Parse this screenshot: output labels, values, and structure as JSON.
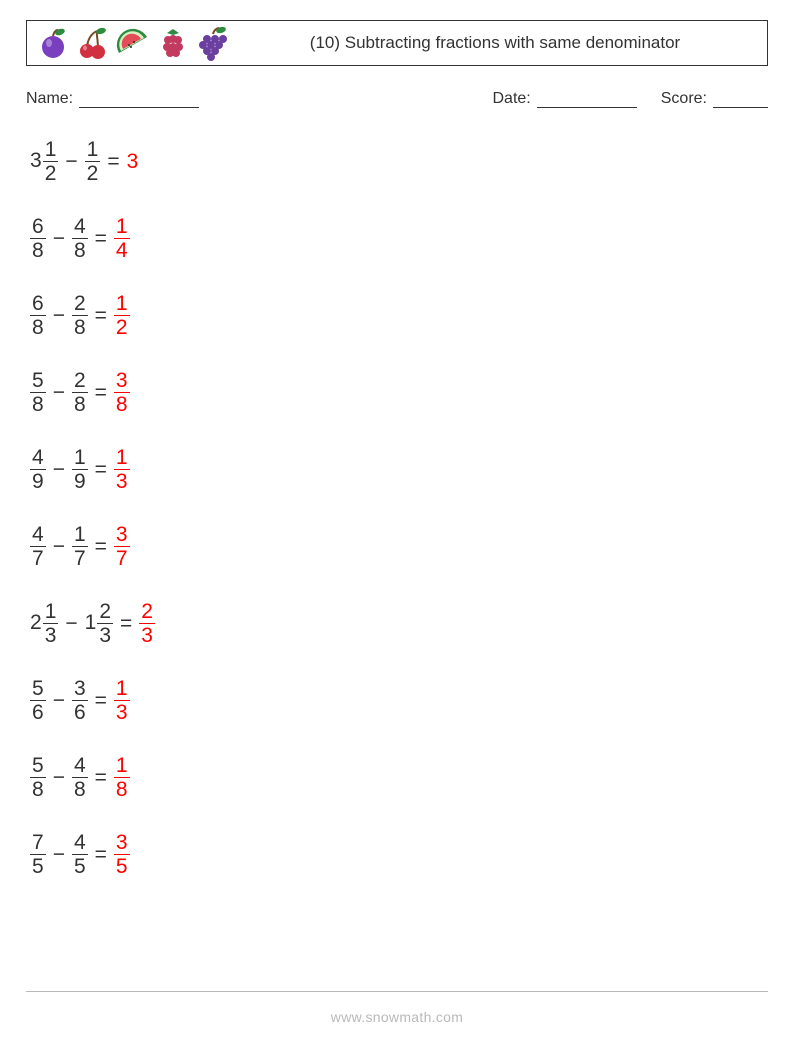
{
  "header": {
    "title": "(10) Subtracting fractions with same denominator",
    "title_fontsize": 17,
    "box_border_color": "#333333",
    "fruits": [
      {
        "name": "plum-icon",
        "colors": {
          "body": "#7a3fbf",
          "leaf": "#2e8b3f",
          "stem": "#7a4a1f"
        }
      },
      {
        "name": "cherries-icon",
        "colors": {
          "body": "#d03040",
          "leaf": "#2e8b3f",
          "stem": "#7a4a1f"
        }
      },
      {
        "name": "watermelon-icon",
        "colors": {
          "flesh": "#e34d58",
          "rind": "#2e8b3f",
          "inner": "#d6f0c0",
          "seed": "#2b2b2b"
        }
      },
      {
        "name": "raspberry-icon",
        "colors": {
          "body": "#c23a5f",
          "leaf": "#2e8b3f"
        }
      },
      {
        "name": "grapes-icon",
        "colors": {
          "body": "#6a3fa0",
          "leaf": "#2e8b3f",
          "stem": "#7a4a1f"
        }
      }
    ]
  },
  "meta": {
    "name_label": "Name:",
    "date_label": "Date:",
    "score_label": "Score:"
  },
  "style": {
    "text_color": "#333333",
    "answer_color": "#ff0000",
    "problem_fontsize": 21,
    "background_color": "#ffffff",
    "footer_color": "#b9b9b9"
  },
  "problems": [
    {
      "a": {
        "whole": "3",
        "num": "1",
        "den": "2"
      },
      "b": {
        "whole": "",
        "num": "1",
        "den": "2"
      },
      "ans": {
        "whole": "3",
        "num": "",
        "den": ""
      }
    },
    {
      "a": {
        "whole": "",
        "num": "6",
        "den": "8"
      },
      "b": {
        "whole": "",
        "num": "4",
        "den": "8"
      },
      "ans": {
        "whole": "",
        "num": "1",
        "den": "4"
      }
    },
    {
      "a": {
        "whole": "",
        "num": "6",
        "den": "8"
      },
      "b": {
        "whole": "",
        "num": "2",
        "den": "8"
      },
      "ans": {
        "whole": "",
        "num": "1",
        "den": "2"
      }
    },
    {
      "a": {
        "whole": "",
        "num": "5",
        "den": "8"
      },
      "b": {
        "whole": "",
        "num": "2",
        "den": "8"
      },
      "ans": {
        "whole": "",
        "num": "3",
        "den": "8"
      }
    },
    {
      "a": {
        "whole": "",
        "num": "4",
        "den": "9"
      },
      "b": {
        "whole": "",
        "num": "1",
        "den": "9"
      },
      "ans": {
        "whole": "",
        "num": "1",
        "den": "3"
      }
    },
    {
      "a": {
        "whole": "",
        "num": "4",
        "den": "7"
      },
      "b": {
        "whole": "",
        "num": "1",
        "den": "7"
      },
      "ans": {
        "whole": "",
        "num": "3",
        "den": "7"
      }
    },
    {
      "a": {
        "whole": "2",
        "num": "1",
        "den": "3"
      },
      "b": {
        "whole": "1",
        "num": "2",
        "den": "3"
      },
      "ans": {
        "whole": "",
        "num": "2",
        "den": "3"
      }
    },
    {
      "a": {
        "whole": "",
        "num": "5",
        "den": "6"
      },
      "b": {
        "whole": "",
        "num": "3",
        "den": "6"
      },
      "ans": {
        "whole": "",
        "num": "1",
        "den": "3"
      }
    },
    {
      "a": {
        "whole": "",
        "num": "5",
        "den": "8"
      },
      "b": {
        "whole": "",
        "num": "4",
        "den": "8"
      },
      "ans": {
        "whole": "",
        "num": "1",
        "den": "8"
      }
    },
    {
      "a": {
        "whole": "",
        "num": "7",
        "den": "5"
      },
      "b": {
        "whole": "",
        "num": "4",
        "den": "5"
      },
      "ans": {
        "whole": "",
        "num": "3",
        "den": "5"
      }
    }
  ],
  "symbols": {
    "minus": "−",
    "equals": "="
  },
  "footer": {
    "text": "www.snowmath.com"
  }
}
